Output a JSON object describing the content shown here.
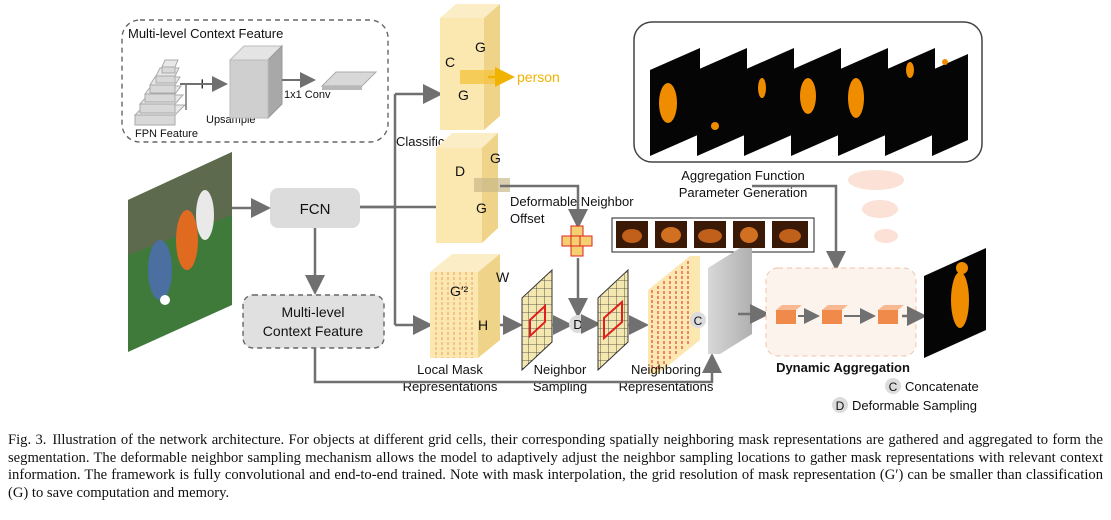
{
  "diagram": {
    "context_box_title": "Multi-level Context Feature",
    "upsample_label": "Upsample",
    "fpn_label": "FPN Feature",
    "conv_label": "1x1 Conv",
    "plus_symbol": "+",
    "fcn_label": "FCN",
    "context_node_label": [
      "Multi-level",
      "Context Feature"
    ],
    "classification_label": "Classification",
    "cls_C": "C",
    "cls_G_top": "G",
    "cls_G_side": "G",
    "person_label": "person",
    "offset_D": "D",
    "offset_G_top": "G",
    "offset_G_side": "G",
    "deformable_offset_label": [
      "Deformable Neighbor",
      "Offset"
    ],
    "local_mask_G2": "G′²",
    "local_mask_W": "W",
    "local_mask_H": "H",
    "local_mask_label": [
      "Local Mask",
      "Representations"
    ],
    "neighbor_sampling_label": [
      "Neighbor",
      "Sampling"
    ],
    "neighboring_repr_label": [
      "Neighboring",
      "Representations"
    ],
    "op_D": "D",
    "op_C": "C",
    "aggregation_label": [
      "Aggregation Function",
      "Parameter Generation"
    ],
    "dynamic_aggregation_label": "Dynamic Aggregation",
    "legend_concatenate": "Concatenate",
    "legend_deformable": "Deformable Sampling",
    "legend_C": "C",
    "legend_D": "D"
  },
  "colors": {
    "arrow": "#707070",
    "cube_yellow": "#f8e4a8",
    "person_arrow": "#f0b400",
    "mask_orange": "#f08c00",
    "grid_red": "#e02020",
    "dyn_box": "#f6c9a8",
    "dyn_block": "#f08a4a"
  },
  "caption": {
    "label": "Fig. 3.",
    "text": "Illustration of the network architecture. For objects at different grid cells, their corresponding spatially neighboring mask representations are gathered and aggregated to form the segmentation. The deformable neighbor sampling mechanism allows the model to adaptively adjust the neighbor sampling locations to gather mask representations with relevant context information. The framework is fully convolutional and end-to-end trained. Note with mask interpolation, the grid resolution of mask representation (G′) can be smaller than classification (G) to save computation and memory."
  }
}
